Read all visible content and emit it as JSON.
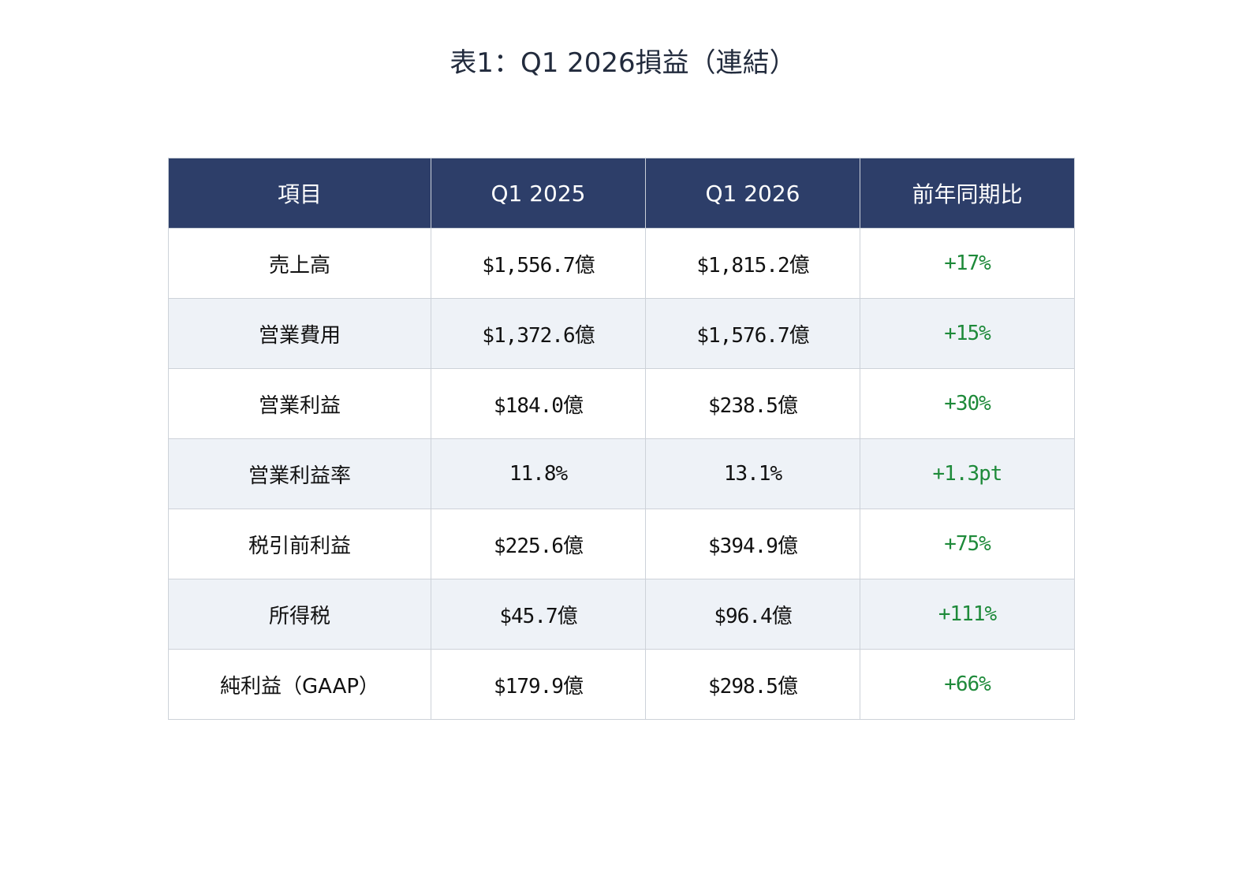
{
  "title": "表1：Q1 2026損益（連結）",
  "table": {
    "headers": [
      "項目",
      "Q1 2025",
      "Q1 2026",
      "前年同期比"
    ],
    "rows": [
      {
        "item": "売上高",
        "q1_2025": "$1,556.7億",
        "q1_2026": "$1,815.2億",
        "yoy": "+17%"
      },
      {
        "item": "営業費用",
        "q1_2025": "$1,372.6億",
        "q1_2026": "$1,576.7億",
        "yoy": "+15%"
      },
      {
        "item": "営業利益",
        "q1_2025": "$184.0億",
        "q1_2026": "$238.5億",
        "yoy": "+30%"
      },
      {
        "item": "営業利益率",
        "q1_2025": "11.8%",
        "q1_2026": "13.1%",
        "yoy": "+1.3pt"
      },
      {
        "item": "税引前利益",
        "q1_2025": "$225.6億",
        "q1_2026": "$394.9億",
        "yoy": "+75%"
      },
      {
        "item": "所得税",
        "q1_2025": "$45.7億",
        "q1_2026": "$96.4億",
        "yoy": "+111%"
      },
      {
        "item": "純利益（GAAP）",
        "q1_2025": "$179.9億",
        "q1_2026": "$298.5億",
        "yoy": "+66%"
      }
    ]
  },
  "colors": {
    "header_bg": "#2d3e69",
    "header_text": "#ffffff",
    "alt_row_bg": "#eef2f7",
    "positive": "#1e8a3a",
    "border": "#cdd2d9"
  }
}
